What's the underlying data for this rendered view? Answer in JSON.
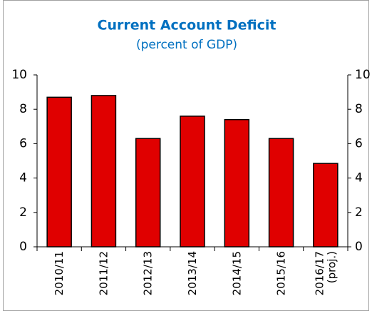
{
  "chart_data": {
    "type": "bar",
    "title": "Current Account Deficit",
    "subtitle": "(percent of GDP)",
    "categories": [
      "2010/11",
      "2011/12",
      "2012/13",
      "2013/14",
      "2014/15",
      "2015/16",
      "2016/17 (proj.)"
    ],
    "values": [
      8.7,
      8.8,
      6.3,
      7.6,
      7.4,
      6.3,
      4.85
    ],
    "color": "#e00000",
    "ylim": [
      0,
      10
    ],
    "yticks": [
      0,
      2,
      4,
      6,
      8,
      10
    ],
    "y2lim": [
      0,
      10
    ],
    "y2ticks": [
      0,
      2,
      4,
      6,
      8,
      10
    ]
  }
}
